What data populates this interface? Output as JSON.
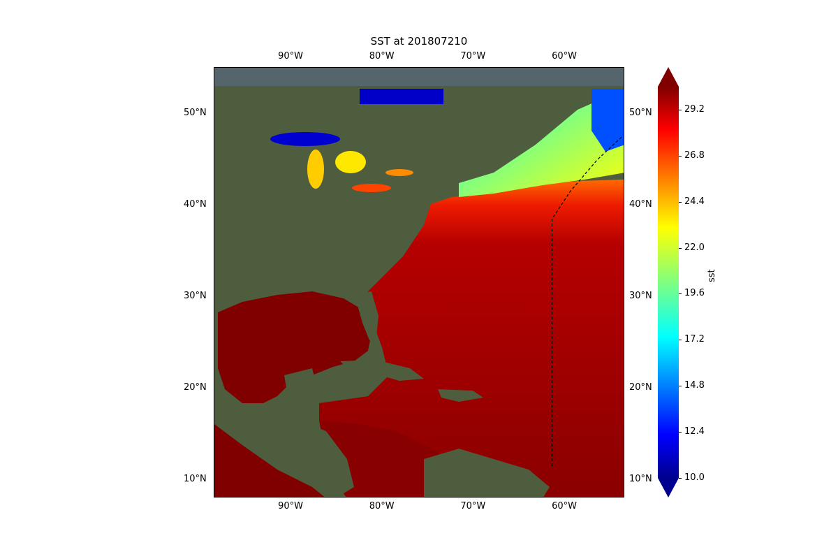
{
  "title": "SST at 201807210",
  "map": {
    "type": "sea_surface_temperature_map",
    "extent": {
      "lon": [
        -98.5,
        -53.5
      ],
      "lat": [
        8,
        55
      ]
    },
    "lon_ticks": [
      {
        "value": -90,
        "label": "90°W"
      },
      {
        "value": -80,
        "label": "80°W"
      },
      {
        "value": -70,
        "label": "70°W"
      },
      {
        "value": -60,
        "label": "60°W"
      }
    ],
    "lat_ticks": [
      {
        "value": 50,
        "label": "50°N"
      },
      {
        "value": 40,
        "label": "40°N"
      },
      {
        "value": 30,
        "label": "30°N"
      },
      {
        "value": 20,
        "label": "20°N"
      },
      {
        "value": 10,
        "label": "10°N"
      }
    ],
    "track": {
      "style": "dashed",
      "color": "#000000",
      "points": [
        [
          -61.5,
          11.5
        ],
        [
          -61.5,
          38.5
        ],
        [
          -59.5,
          41.5
        ],
        [
          -56.5,
          45.0
        ],
        [
          -53.8,
          47.5
        ]
      ]
    }
  },
  "colorbar": {
    "label": "sst",
    "min": 10.0,
    "max": 30.4,
    "ticks": [
      {
        "value": 10.0,
        "label": "10.0"
      },
      {
        "value": 12.4,
        "label": "12.4"
      },
      {
        "value": 14.8,
        "label": "14.8"
      },
      {
        "value": 17.2,
        "label": "17.2"
      },
      {
        "value": 19.6,
        "label": "19.6"
      },
      {
        "value": 22.0,
        "label": "22.0"
      },
      {
        "value": 24.4,
        "label": "24.4"
      },
      {
        "value": 26.8,
        "label": "26.8"
      },
      {
        "value": 29.2,
        "label": "29.2"
      }
    ],
    "colormap": "jet",
    "extend": "both"
  },
  "colors": {
    "land": "#4f5d3f",
    "warm_ocean": "#800000",
    "cold_water": "#0000c8"
  }
}
